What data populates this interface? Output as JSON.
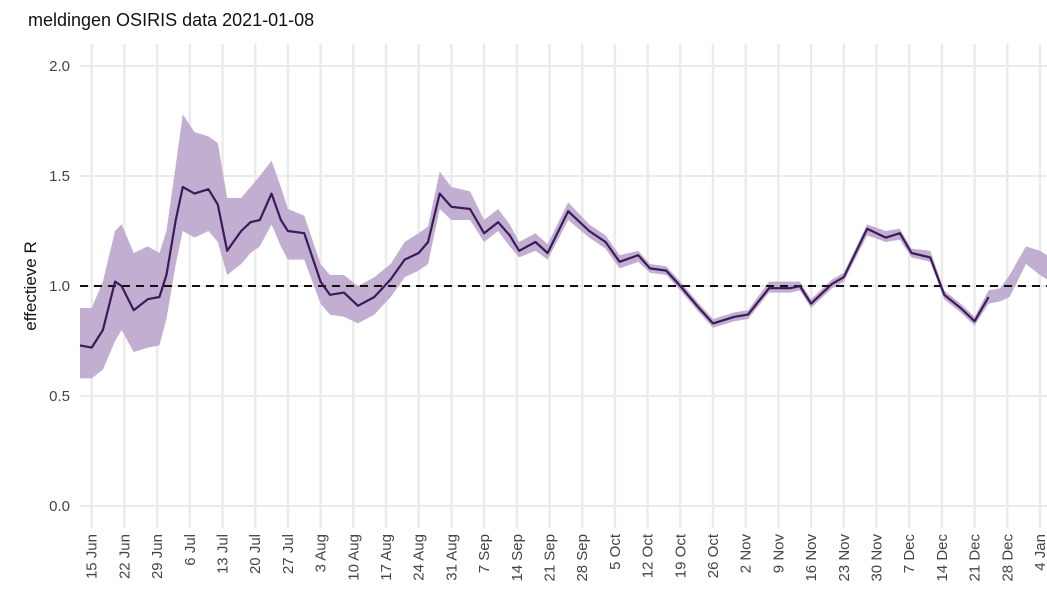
{
  "chart_data": {
    "type": "line",
    "title": "meldingen OSIRIS data 2021-01-08",
    "y_label": "effectieve R",
    "x": [
      -2.5,
      0,
      2.4,
      5,
      6.4,
      9,
      12,
      14.5,
      16,
      18,
      19.5,
      22,
      25,
      27,
      29,
      32,
      34,
      36,
      38.5,
      40.5,
      42,
      45.5,
      49,
      51,
      54,
      57,
      60.5,
      64,
      67,
      70,
      72,
      74.5,
      77,
      81,
      84,
      87,
      89.5,
      91.5,
      95,
      97.6,
      102,
      106.5,
      110,
      113,
      117,
      119.5,
      123,
      126,
      130,
      133,
      137.6,
      140.5,
      145,
      149.5,
      151.6,
      154,
      158.5,
      161,
      166,
      170,
      173,
      175.5,
      179.5,
      182.5,
      186,
      189,
      192,
      194.5,
      196.5,
      200,
      203,
      204.5
    ],
    "series": [
      {
        "name": "effectieve R",
        "color": "#3b1a5a",
        "values": [
          0.73,
          0.72,
          0.8,
          1.02,
          1.0,
          0.89,
          0.94,
          0.95,
          1.05,
          1.3,
          1.45,
          1.42,
          1.44,
          1.37,
          1.16,
          1.25,
          1.29,
          1.3,
          1.42,
          1.3,
          1.25,
          1.24,
          1.02,
          0.96,
          0.97,
          0.91,
          0.95,
          1.03,
          1.12,
          1.15,
          1.2,
          1.42,
          1.36,
          1.35,
          1.24,
          1.29,
          1.23,
          1.16,
          1.2,
          1.15,
          1.34,
          1.25,
          1.2,
          1.11,
          1.14,
          1.08,
          1.07,
          1.0,
          0.9,
          0.83,
          0.86,
          0.87,
          0.99,
          0.99,
          1.0,
          0.92,
          1.01,
          1.04,
          1.26,
          1.22,
          1.24,
          1.15,
          1.13,
          0.96,
          0.9,
          0.84,
          0.95,
          null,
          null,
          null,
          null,
          null
        ]
      }
    ],
    "band": {
      "color": "#c2aed0",
      "lower": [
        0.58,
        0.58,
        0.62,
        0.75,
        0.8,
        0.7,
        0.72,
        0.73,
        0.85,
        1.1,
        1.25,
        1.22,
        1.25,
        1.2,
        1.05,
        1.1,
        1.15,
        1.18,
        1.28,
        1.18,
        1.12,
        1.12,
        0.92,
        0.87,
        0.86,
        0.83,
        0.87,
        0.95,
        1.04,
        1.07,
        1.1,
        1.35,
        1.3,
        1.3,
        1.2,
        1.25,
        1.18,
        1.13,
        1.16,
        1.12,
        1.3,
        1.22,
        1.17,
        1.08,
        1.11,
        1.06,
        1.05,
        0.98,
        0.88,
        0.81,
        0.84,
        0.85,
        0.97,
        0.97,
        0.98,
        0.9,
        0.99,
        1.02,
        1.23,
        1.2,
        1.21,
        1.13,
        1.11,
        0.94,
        0.88,
        0.82,
        0.92,
        0.93,
        0.95,
        1.1,
        1.05,
        1.03
      ],
      "upper": [
        0.9,
        0.9,
        1.02,
        1.25,
        1.28,
        1.15,
        1.18,
        1.15,
        1.25,
        1.55,
        1.78,
        1.7,
        1.68,
        1.65,
        1.4,
        1.4,
        1.45,
        1.5,
        1.57,
        1.45,
        1.35,
        1.32,
        1.1,
        1.05,
        1.05,
        1.0,
        1.04,
        1.1,
        1.2,
        1.24,
        1.27,
        1.52,
        1.45,
        1.43,
        1.3,
        1.35,
        1.28,
        1.2,
        1.24,
        1.19,
        1.38,
        1.28,
        1.23,
        1.14,
        1.16,
        1.1,
        1.09,
        1.02,
        0.92,
        0.85,
        0.88,
        0.89,
        1.02,
        1.02,
        1.02,
        0.94,
        1.03,
        1.06,
        1.28,
        1.25,
        1.26,
        1.17,
        1.16,
        0.98,
        0.92,
        0.86,
        0.98,
        0.99,
        1.05,
        1.18,
        1.16,
        1.14
      ]
    },
    "reference_line": 1.0,
    "xlim": [
      -2.5,
      204.5
    ],
    "ylim": [
      -0.1,
      2.1
    ],
    "yticks": [
      {
        "value": 0,
        "label": "0.0"
      },
      0.5,
      {
        "value": 1,
        "label": "1.0"
      },
      1.5,
      {
        "value": 2,
        "label": "2.0"
      }
    ],
    "xticks": [
      {
        "value": 0,
        "label": "15 Jun"
      },
      {
        "value": 7,
        "label": "22 Jun"
      },
      {
        "value": 14,
        "label": "29 Jun"
      },
      {
        "value": 21,
        "label": "6 Jul"
      },
      {
        "value": 28,
        "label": "13 Jul"
      },
      {
        "value": 35,
        "label": "20 Jul"
      },
      {
        "value": 42,
        "label": "27 Jul"
      },
      {
        "value": 49,
        "label": "3 Aug"
      },
      {
        "value": 56,
        "label": "10 Aug"
      },
      {
        "value": 63,
        "label": "17 Aug"
      },
      {
        "value": 70,
        "label": "24 Aug"
      },
      {
        "value": 77,
        "label": "31 Aug"
      },
      {
        "value": 84,
        "label": "7 Sep"
      },
      {
        "value": 91,
        "label": "14 Sep"
      },
      {
        "value": 98,
        "label": "21 Sep"
      },
      {
        "value": 105,
        "label": "28 Sep"
      },
      {
        "value": 112,
        "label": "5 Oct"
      },
      {
        "value": 119,
        "label": "12 Oct"
      },
      {
        "value": 126,
        "label": "19 Oct"
      },
      {
        "value": 133,
        "label": "26 Oct"
      },
      {
        "value": 140,
        "label": "2 Nov"
      },
      {
        "value": 147,
        "label": "9 Nov"
      },
      {
        "value": 154,
        "label": "16 Nov"
      },
      {
        "value": 161,
        "label": "23 Nov"
      },
      {
        "value": 168,
        "label": "30 Nov"
      },
      {
        "value": 175,
        "label": "7 Dec"
      },
      {
        "value": 182,
        "label": "14 Dec"
      },
      {
        "value": 189,
        "label": "21 Dec"
      },
      {
        "value": 196,
        "label": "28 Dec"
      },
      {
        "value": 203,
        "label": "4 Jan"
      }
    ],
    "grid": true
  }
}
